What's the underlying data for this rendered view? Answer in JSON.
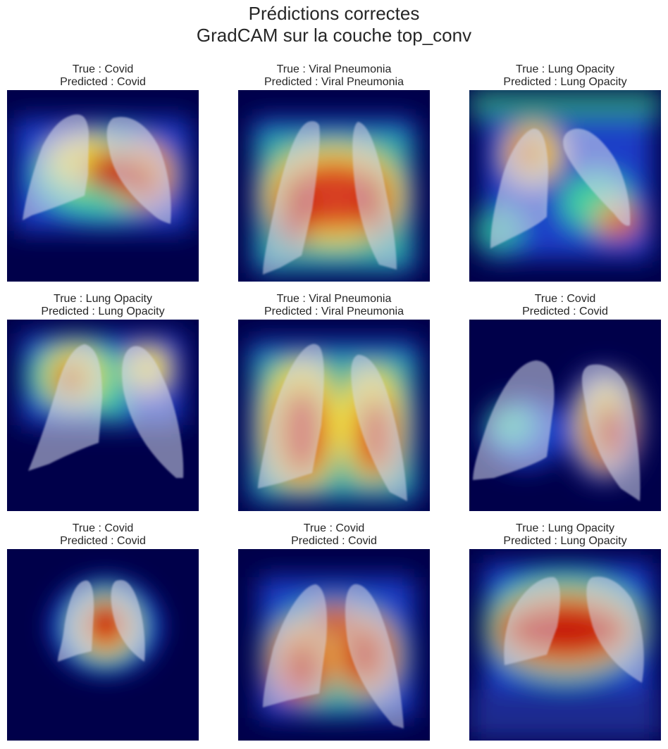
{
  "figure": {
    "title_line1": "Prédictions correctes",
    "title_line2": "GradCAM sur la couche top_conv"
  },
  "panels": [
    {
      "true_label": "True : Covid",
      "pred_label": "Predicted : Covid",
      "image": "lung-xray-gradcam-heatmap"
    },
    {
      "true_label": "True : Viral Pneumonia",
      "pred_label": "Predicted : Viral Pneumonia",
      "image": "lung-xray-gradcam-heatmap"
    },
    {
      "true_label": "True : Lung Opacity",
      "pred_label": "Predicted : Lung Opacity",
      "image": "lung-xray-gradcam-heatmap"
    },
    {
      "true_label": "True : Lung Opacity",
      "pred_label": "Predicted : Lung Opacity",
      "image": "lung-xray-gradcam-heatmap"
    },
    {
      "true_label": "True : Viral Pneumonia",
      "pred_label": "Predicted : Viral Pneumonia",
      "image": "lung-xray-gradcam-heatmap"
    },
    {
      "true_label": "True : Covid",
      "pred_label": "Predicted : Covid",
      "image": "lung-xray-gradcam-heatmap"
    },
    {
      "true_label": "True : Covid",
      "pred_label": "Predicted : Covid",
      "image": "lung-xray-gradcam-heatmap"
    },
    {
      "true_label": "True : Covid",
      "pred_label": "Predicted : Covid",
      "image": "lung-xray-gradcam-heatmap"
    },
    {
      "true_label": "True : Lung Opacity",
      "pred_label": "Predicted : Lung Opacity",
      "image": "lung-xray-gradcam-heatmap"
    }
  ],
  "colors": {
    "background": "#00004a",
    "heat_low": "#1a3cc8",
    "heat_mid": "#3fd0a0",
    "heat_high_yellow": "#f2e040",
    "heat_hot": "#c81e10",
    "lung_overlay": "#d8dcf0"
  }
}
